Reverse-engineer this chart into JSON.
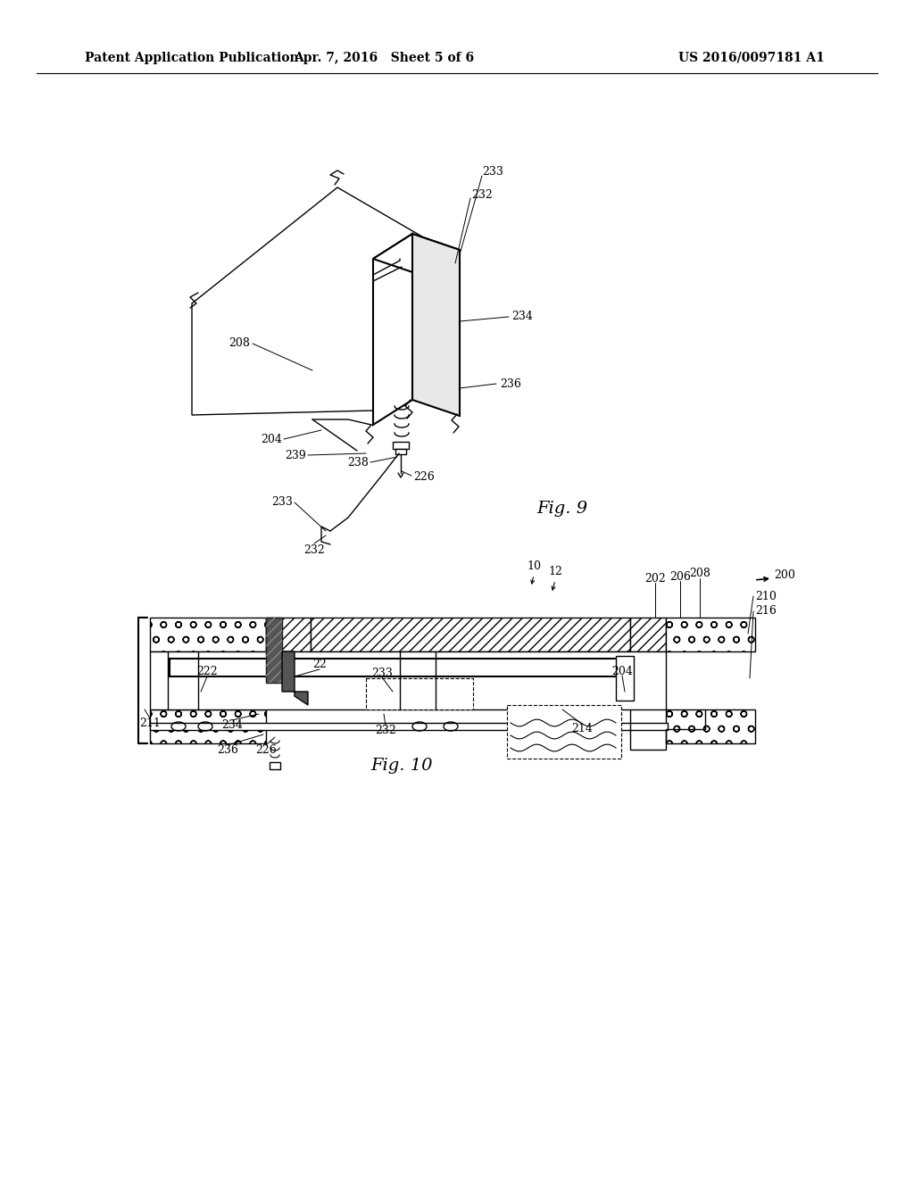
{
  "bg_color": "#ffffff",
  "line_color": "#000000",
  "header_left": "Patent Application Publication",
  "header_mid": "Apr. 7, 2016   Sheet 5 of 6",
  "header_right": "US 2016/0097181 A1"
}
